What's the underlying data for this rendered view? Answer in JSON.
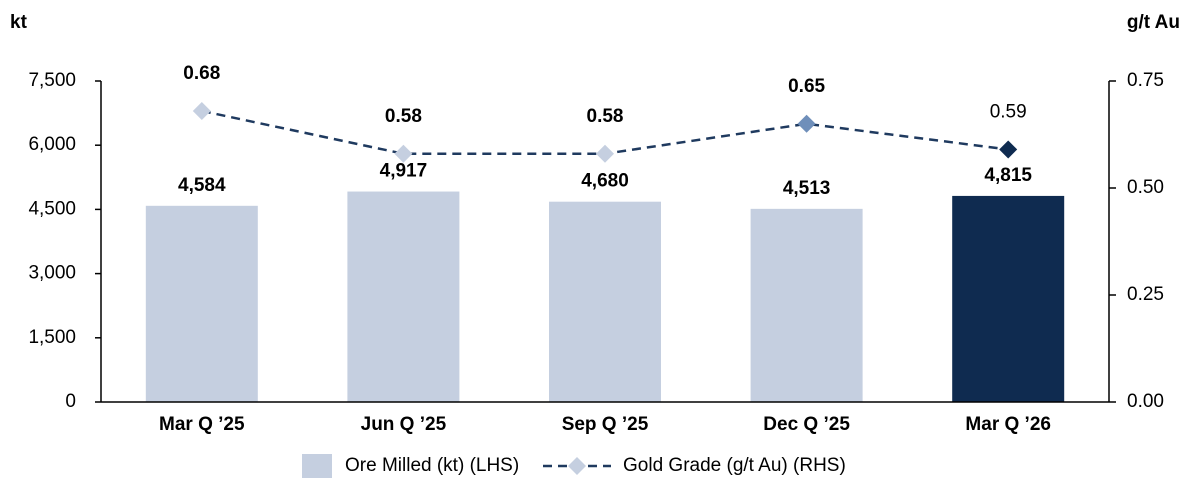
{
  "chart_data": {
    "type": "bar_line",
    "y_label": "kt",
    "y2_label": "g/t Au",
    "categories": [
      "Mar Q ’25",
      "Jun Q ’25",
      "Sep Q ’25",
      "Dec Q ’25",
      "Mar Q ’26"
    ],
    "series": [
      {
        "name": "Ore Milled (kt) (LHS)",
        "type": "bar",
        "color": "#c5cfe0",
        "colors": [
          "#c5cfe0",
          "#c5cfe0",
          "#c5cfe0",
          "#c5cfe0",
          "#0f2b50"
        ],
        "label_colors": [
          "#7391bd",
          "#7391bd",
          "#7391bd",
          "#7391bd",
          "#000000"
        ],
        "values": [
          4584,
          4917,
          4680,
          4513,
          4815
        ],
        "value_labels": [
          "4,584",
          "4,917",
          "4,680",
          "4,513",
          "4,815"
        ]
      },
      {
        "name": "Gold Grade (g/t Au) (RHS)",
        "type": "line",
        "axis": "y2",
        "color": "#1f3a5f",
        "marker_colors": [
          "#c5cfe0",
          "#c5cfe0",
          "#c5cfe0",
          "#6f8fba",
          "#0f2b50"
        ],
        "label_colors": [
          "#7391bd",
          "#7391bd",
          "#7391bd",
          "#7391bd",
          "#000000"
        ],
        "label_weights": [
          "bold",
          "bold",
          "bold",
          "bold",
          "normal"
        ],
        "values": [
          0.68,
          0.58,
          0.58,
          0.65,
          0.59
        ]
      }
    ],
    "ylim": [
      0,
      7500
    ],
    "yticks": [
      0,
      {
        "value": 1500,
        "label": "1,500"
      },
      {
        "value": 3000,
        "label": "3,000"
      },
      {
        "value": 4500,
        "label": "4,500"
      },
      {
        "value": 6000,
        "label": "6,000"
      },
      {
        "value": 7500,
        "label": "7,500"
      }
    ],
    "y2lim": [
      0,
      0.75
    ],
    "y2ticks": [
      {
        "value": 0,
        "label": "0.00"
      },
      0.25,
      {
        "value": 0.5,
        "label": "0.50"
      },
      {
        "value": 0.75,
        "label": "0.75"
      }
    ],
    "legend": "bottom"
  }
}
